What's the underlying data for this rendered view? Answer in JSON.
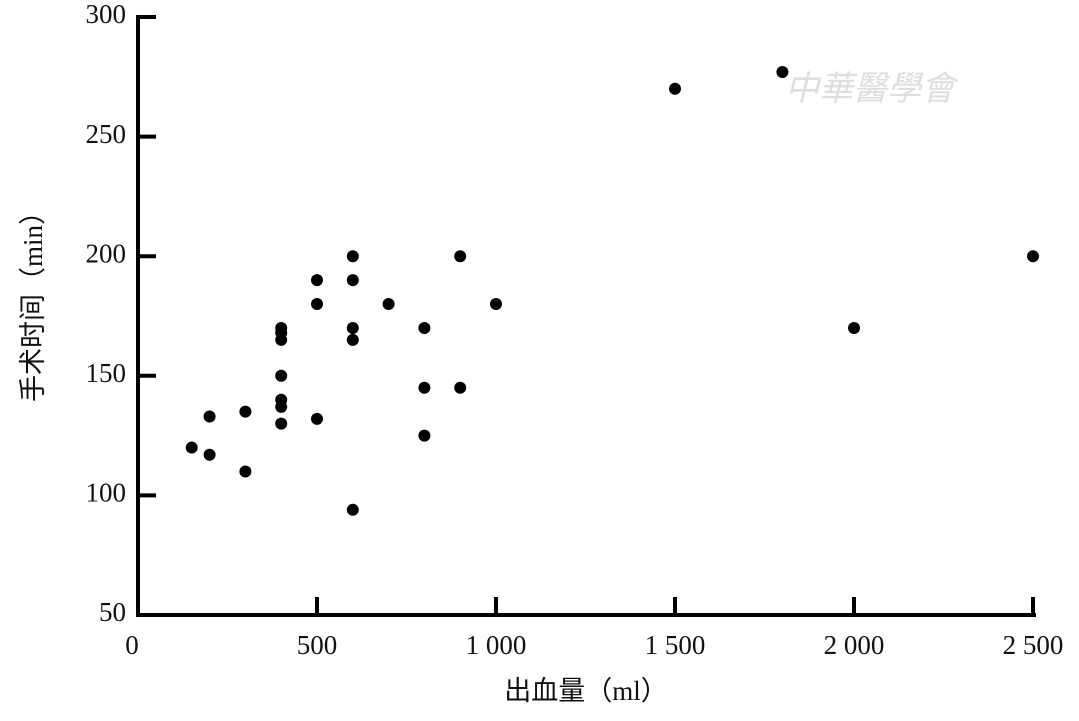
{
  "chart_data": {
    "type": "scatter",
    "x_label": "出血量（ml）",
    "y_label": "手术时间（min）",
    "watermark": "中華醫學會",
    "color": "#000000",
    "x": [
      150,
      200,
      200,
      300,
      300,
      400,
      400,
      400,
      400,
      400,
      400,
      400,
      500,
      500,
      500,
      600,
      600,
      600,
      600,
      600,
      700,
      800,
      800,
      800,
      900,
      900,
      1000,
      1500,
      1800,
      2000,
      2500
    ],
    "values": [
      120,
      133,
      117,
      135,
      110,
      170,
      168,
      165,
      150,
      140,
      137,
      130,
      190,
      180,
      132,
      200,
      190,
      170,
      165,
      94,
      180,
      170,
      145,
      125,
      200,
      145,
      180,
      270,
      277,
      170,
      200
    ],
    "xlim": [
      0,
      2500
    ],
    "xticks": [
      0,
      500,
      {
        "value": 1000,
        "label": "1 000"
      },
      {
        "value": 1500,
        "label": "1 500"
      },
      {
        "value": 2000,
        "label": "2 000"
      },
      {
        "value": 2500,
        "label": "2 500"
      }
    ],
    "ylim": [
      50,
      300
    ],
    "yticks": [
      50,
      100,
      150,
      200,
      250,
      300
    ],
    "grid": false
  }
}
